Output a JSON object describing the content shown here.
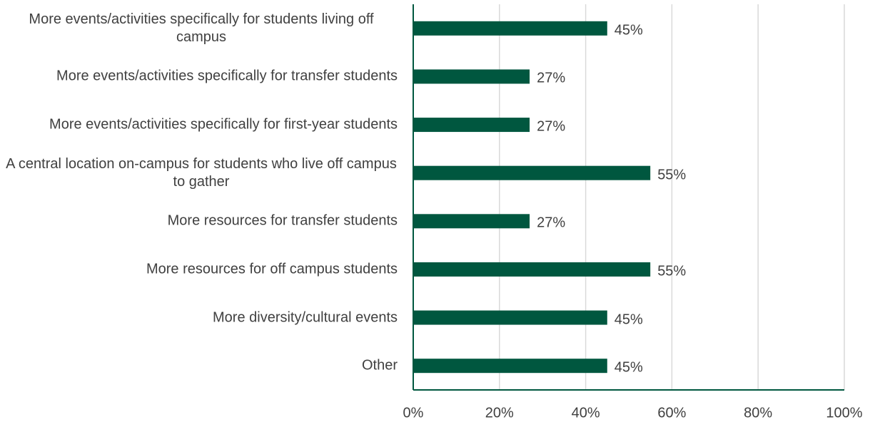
{
  "chart_data": {
    "type": "barh",
    "categories": [
      "More events/activities specifically for students living off campus",
      "More events/activities specifically for transfer students",
      "More events/activities specifically for first-year students",
      "A central location on-campus for students who live off campus to gather",
      "More resources for transfer students",
      "More resources for off campus students",
      "More diversity/cultural events",
      "Other"
    ],
    "values": [
      45,
      27,
      27,
      55,
      27,
      55,
      45,
      45
    ],
    "value_labels": [
      "45%",
      "27%",
      "27%",
      "55%",
      "27%",
      "55%",
      "45%",
      "45%"
    ],
    "color": "#00573f",
    "xlim": [
      0,
      100
    ],
    "xticks": [
      {
        "value": 0,
        "label": "0%"
      },
      {
        "value": 20,
        "label": "20%"
      },
      {
        "value": 40,
        "label": "40%"
      },
      {
        "value": 60,
        "label": "60%"
      },
      {
        "value": 80,
        "label": "80%"
      },
      {
        "value": 100,
        "label": "100%"
      }
    ],
    "grid": true
  }
}
